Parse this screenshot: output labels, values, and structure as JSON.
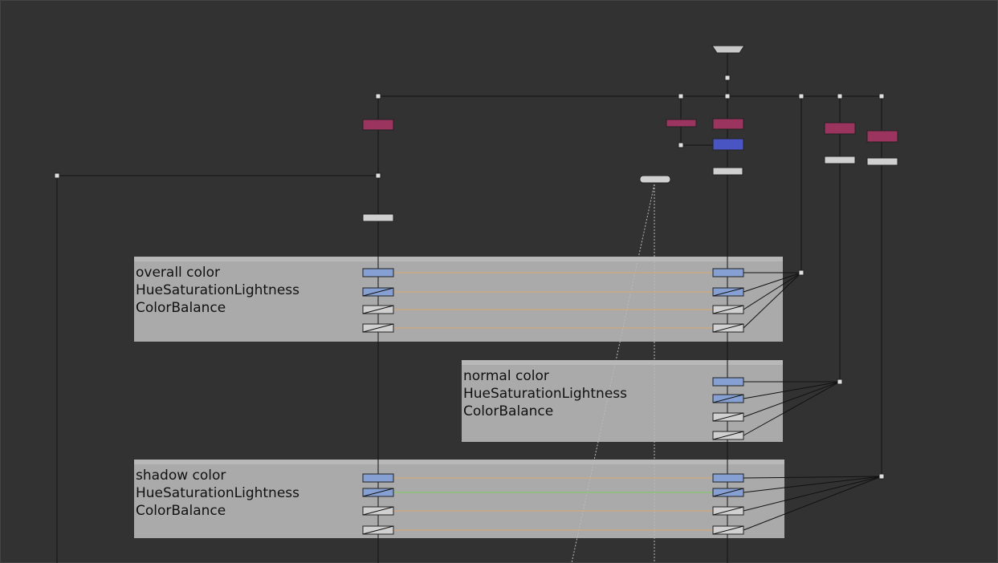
{
  "backdrops": [
    {
      "title": "overall color",
      "lines": [
        "HueSaturationLightness",
        "ColorBalance"
      ]
    },
    {
      "title": "normal color",
      "lines": [
        "HueSaturationLightness",
        "ColorBalance"
      ]
    },
    {
      "title": "shadow color",
      "lines": [
        "HueSaturationLightness",
        "ColorBalance"
      ]
    }
  ]
}
